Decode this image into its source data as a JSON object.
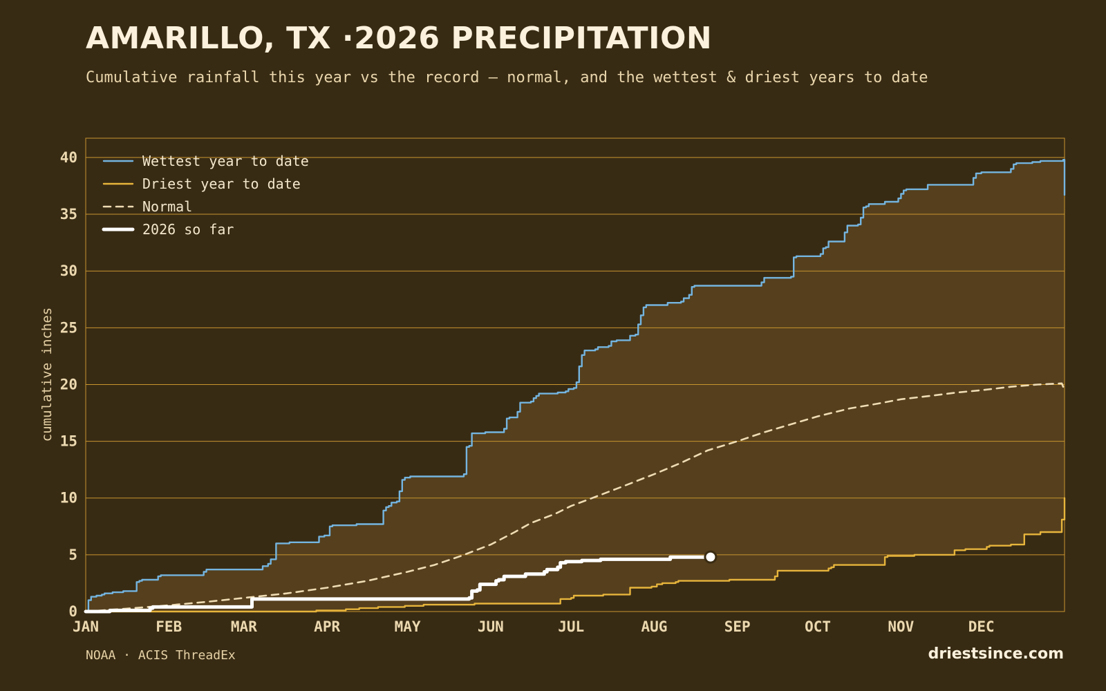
{
  "header": {
    "title": "AMARILLO, TX ·2026 PRECIPITATION",
    "subtitle": "Cumulative rainfall this year vs the record — normal, and the wettest & driest years to date"
  },
  "footer": {
    "source": "NOAA · ACIS ThreadEx",
    "brand": "driestsince.com"
  },
  "colors": {
    "wettest": "#74b5e0",
    "driest": "#e7b53c",
    "normal": "#efdcb4",
    "current": "#ffffff",
    "band": "#553f1d",
    "grid": "#c9952f"
  },
  "chart_data": {
    "type": "line",
    "ylabel": "cumulative inches",
    "ylim": [
      0,
      41.7
    ],
    "xlim": [
      0,
      365
    ],
    "yticks": [
      0,
      5,
      10,
      15,
      20,
      25,
      30,
      35,
      40
    ],
    "x_unit": "day of year",
    "month_ticks": [
      {
        "label": "JAN",
        "day": 0
      },
      {
        "label": "FEB",
        "day": 31
      },
      {
        "label": "MAR",
        "day": 59
      },
      {
        "label": "APR",
        "day": 90
      },
      {
        "label": "MAY",
        "day": 120
      },
      {
        "label": "JUN",
        "day": 151
      },
      {
        "label": "JUL",
        "day": 181
      },
      {
        "label": "AUG",
        "day": 212
      },
      {
        "label": "SEP",
        "day": 243
      },
      {
        "label": "OCT",
        "day": 273
      },
      {
        "label": "NOV",
        "day": 304
      },
      {
        "label": "DEC",
        "day": 334
      }
    ],
    "legend": {
      "position": "top-left",
      "items": [
        {
          "key": "wettest",
          "label": "Wettest year to date"
        },
        {
          "key": "driest",
          "label": "Driest year to date"
        },
        {
          "key": "normal",
          "label": "Normal"
        },
        {
          "key": "current",
          "label": "2026 so far"
        }
      ]
    },
    "series": [
      {
        "name": "Wettest year to date",
        "key": "wettest",
        "step": true,
        "points": [
          [
            0,
            0
          ],
          [
            1,
            1.0
          ],
          [
            2,
            1.3
          ],
          [
            4,
            1.4
          ],
          [
            6,
            1.5
          ],
          [
            7,
            1.6
          ],
          [
            10,
            1.7
          ],
          [
            14,
            1.8
          ],
          [
            19,
            2.6
          ],
          [
            20,
            2.7
          ],
          [
            21,
            2.8
          ],
          [
            27,
            3.1
          ],
          [
            28,
            3.2
          ],
          [
            42,
            3.2
          ],
          [
            43,
            3.2
          ],
          [
            44,
            3.5
          ],
          [
            45,
            3.7
          ],
          [
            65,
            3.7
          ],
          [
            66,
            4.0
          ],
          [
            68,
            4.2
          ],
          [
            69,
            4.6
          ],
          [
            70,
            4.6
          ],
          [
            71,
            6.0
          ],
          [
            76,
            6.1
          ],
          [
            86,
            6.1
          ],
          [
            87,
            6.6
          ],
          [
            89,
            6.7
          ],
          [
            91,
            7.5
          ],
          [
            92,
            7.6
          ],
          [
            100,
            7.6
          ],
          [
            101,
            7.7
          ],
          [
            110,
            7.7
          ],
          [
            111,
            8.9
          ],
          [
            112,
            9.2
          ],
          [
            113,
            9.3
          ],
          [
            114,
            9.6
          ],
          [
            116,
            9.7
          ],
          [
            117,
            10.6
          ],
          [
            118,
            11.6
          ],
          [
            119,
            11.8
          ],
          [
            120,
            11.8
          ],
          [
            121,
            11.9
          ],
          [
            140,
            11.9
          ],
          [
            141,
            12.1
          ],
          [
            142,
            14.5
          ],
          [
            143,
            14.6
          ],
          [
            144,
            15.7
          ],
          [
            149,
            15.8
          ],
          [
            155,
            15.8
          ],
          [
            156,
            16.1
          ],
          [
            157,
            17.0
          ],
          [
            158,
            17.1
          ],
          [
            160,
            17.1
          ],
          [
            161,
            17.6
          ],
          [
            162,
            18.4
          ],
          [
            166,
            18.5
          ],
          [
            167,
            18.8
          ],
          [
            168,
            19.0
          ],
          [
            169,
            19.2
          ],
          [
            175,
            19.2
          ],
          [
            176,
            19.3
          ],
          [
            179,
            19.4
          ],
          [
            180,
            19.6
          ],
          [
            182,
            19.7
          ],
          [
            183,
            20.2
          ],
          [
            184,
            21.6
          ],
          [
            185,
            22.6
          ],
          [
            186,
            23.0
          ],
          [
            190,
            23.1
          ],
          [
            191,
            23.3
          ],
          [
            195,
            23.4
          ],
          [
            196,
            23.8
          ],
          [
            198,
            23.9
          ],
          [
            202,
            23.9
          ],
          [
            203,
            24.3
          ],
          [
            205,
            24.4
          ],
          [
            206,
            25.3
          ],
          [
            207,
            26.1
          ],
          [
            208,
            26.8
          ],
          [
            209,
            27.0
          ],
          [
            216,
            27.0
          ],
          [
            217,
            27.2
          ],
          [
            222,
            27.3
          ],
          [
            223,
            27.6
          ],
          [
            225,
            27.9
          ],
          [
            226,
            28.6
          ],
          [
            227,
            28.7
          ],
          [
            240,
            28.7
          ],
          [
            251,
            28.7
          ],
          [
            252,
            29.0
          ],
          [
            253,
            29.4
          ],
          [
            263,
            29.5
          ],
          [
            264,
            31.2
          ],
          [
            265,
            31.3
          ],
          [
            273,
            31.3
          ],
          [
            274,
            31.5
          ],
          [
            275,
            32.0
          ],
          [
            276,
            32.1
          ],
          [
            277,
            32.6
          ],
          [
            282,
            32.6
          ],
          [
            283,
            33.4
          ],
          [
            284,
            34.0
          ],
          [
            288,
            34.1
          ],
          [
            289,
            34.7
          ],
          [
            290,
            35.6
          ],
          [
            291,
            35.7
          ],
          [
            292,
            35.9
          ],
          [
            297,
            35.9
          ],
          [
            298,
            36.1
          ],
          [
            302,
            36.1
          ],
          [
            303,
            36.4
          ],
          [
            304,
            36.8
          ],
          [
            305,
            37.1
          ],
          [
            306,
            37.2
          ],
          [
            313,
            37.2
          ],
          [
            314,
            37.6
          ],
          [
            330,
            37.6
          ],
          [
            331,
            38.2
          ],
          [
            332,
            38.6
          ],
          [
            334,
            38.7
          ],
          [
            344,
            38.7
          ],
          [
            345,
            39.0
          ],
          [
            346,
            39.4
          ],
          [
            347,
            39.5
          ],
          [
            352,
            39.5
          ],
          [
            353,
            39.6
          ],
          [
            356,
            39.7
          ],
          [
            364,
            39.7
          ],
          [
            364.5,
            39.8
          ],
          [
            365,
            36.7
          ]
        ]
      },
      {
        "name": "Driest year to date",
        "key": "driest",
        "step": true,
        "points": [
          [
            0,
            0
          ],
          [
            85,
            0
          ],
          [
            86,
            0.1
          ],
          [
            96,
            0.1
          ],
          [
            97,
            0.2
          ],
          [
            101,
            0.2
          ],
          [
            102,
            0.3
          ],
          [
            108,
            0.3
          ],
          [
            109,
            0.4
          ],
          [
            118,
            0.4
          ],
          [
            119,
            0.5
          ],
          [
            125,
            0.5
          ],
          [
            126,
            0.6
          ],
          [
            144,
            0.6
          ],
          [
            145,
            0.7
          ],
          [
            176,
            0.7
          ],
          [
            177,
            1.1
          ],
          [
            181,
            1.2
          ],
          [
            182,
            1.4
          ],
          [
            192,
            1.4
          ],
          [
            193,
            1.5
          ],
          [
            202,
            1.5
          ],
          [
            203,
            2.1
          ],
          [
            210,
            2.1
          ],
          [
            211,
            2.2
          ],
          [
            213,
            2.4
          ],
          [
            215,
            2.5
          ],
          [
            220,
            2.6
          ],
          [
            221,
            2.7
          ],
          [
            239,
            2.7
          ],
          [
            240,
            2.8
          ],
          [
            256,
            2.8
          ],
          [
            257,
            3.1
          ],
          [
            258,
            3.6
          ],
          [
            276,
            3.6
          ],
          [
            277,
            3.8
          ],
          [
            278,
            3.9
          ],
          [
            279,
            4.1
          ],
          [
            297,
            4.1
          ],
          [
            298,
            4.8
          ],
          [
            299,
            4.9
          ],
          [
            308,
            4.9
          ],
          [
            309,
            5.0
          ],
          [
            323,
            5.0
          ],
          [
            324,
            5.4
          ],
          [
            328,
            5.5
          ],
          [
            335,
            5.5
          ],
          [
            336,
            5.7
          ],
          [
            337,
            5.8
          ],
          [
            344,
            5.8
          ],
          [
            345,
            5.9
          ],
          [
            349,
            5.9
          ],
          [
            350,
            6.8
          ],
          [
            355,
            6.8
          ],
          [
            356,
            7.0
          ],
          [
            363,
            7.0
          ],
          [
            364,
            8.1
          ],
          [
            365,
            10.0
          ]
        ]
      },
      {
        "name": "Normal",
        "key": "normal",
        "step": false,
        "points": [
          [
            0,
            0
          ],
          [
            15,
            0.25
          ],
          [
            31,
            0.55
          ],
          [
            45,
            0.85
          ],
          [
            59,
            1.2
          ],
          [
            75,
            1.6
          ],
          [
            90,
            2.1
          ],
          [
            105,
            2.7
          ],
          [
            120,
            3.5
          ],
          [
            130,
            4.1
          ],
          [
            140,
            4.9
          ],
          [
            151,
            5.9
          ],
          [
            160,
            7.0
          ],
          [
            166,
            7.8
          ],
          [
            175,
            8.6
          ],
          [
            181,
            9.3
          ],
          [
            190,
            10.1
          ],
          [
            200,
            11.0
          ],
          [
            212,
            12.1
          ],
          [
            222,
            13.1
          ],
          [
            232,
            14.2
          ],
          [
            243,
            15.0
          ],
          [
            253,
            15.8
          ],
          [
            263,
            16.5
          ],
          [
            273,
            17.2
          ],
          [
            285,
            17.9
          ],
          [
            295,
            18.3
          ],
          [
            304,
            18.7
          ],
          [
            315,
            19.0
          ],
          [
            325,
            19.3
          ],
          [
            334,
            19.5
          ],
          [
            345,
            19.8
          ],
          [
            355,
            20.0
          ],
          [
            364,
            20.1
          ],
          [
            365,
            19.5
          ]
        ]
      },
      {
        "name": "2026 so far",
        "key": "current",
        "step": true,
        "points": [
          [
            0,
            0
          ],
          [
            8,
            0
          ],
          [
            9,
            0.1
          ],
          [
            23,
            0.1
          ],
          [
            24,
            0.3
          ],
          [
            25,
            0.4
          ],
          [
            61,
            0.4
          ],
          [
            62,
            1.1
          ],
          [
            142,
            1.1
          ],
          [
            143,
            1.2
          ],
          [
            144,
            1.8
          ],
          [
            146,
            1.9
          ],
          [
            147,
            2.4
          ],
          [
            152,
            2.4
          ],
          [
            153,
            2.7
          ],
          [
            154,
            2.8
          ],
          [
            156,
            3.1
          ],
          [
            163,
            3.1
          ],
          [
            164,
            3.3
          ],
          [
            170,
            3.3
          ],
          [
            171,
            3.5
          ],
          [
            172,
            3.7
          ],
          [
            175,
            3.7
          ],
          [
            176,
            3.9
          ],
          [
            177,
            4.3
          ],
          [
            178,
            4.3
          ],
          [
            179,
            4.4
          ],
          [
            184,
            4.4
          ],
          [
            185,
            4.5
          ],
          [
            191,
            4.5
          ],
          [
            192,
            4.6
          ],
          [
            217,
            4.6
          ],
          [
            218,
            4.8
          ],
          [
            233,
            4.8
          ]
        ],
        "marker_at_end": true
      }
    ]
  }
}
